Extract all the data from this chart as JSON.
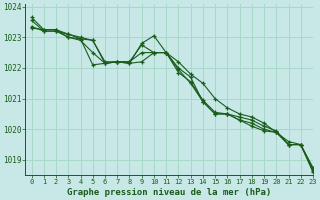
{
  "background_color": "#c8e8e8",
  "grid_color": "#a8d8c8",
  "line_color": "#1a5c1a",
  "title": "Graphe pression niveau de la mer (hPa)",
  "xlim": [
    -0.5,
    23
  ],
  "ylim": [
    1018.5,
    1024.1
  ],
  "yticks": [
    1019,
    1020,
    1021,
    1022,
    1023,
    1024
  ],
  "xticks": [
    0,
    1,
    2,
    3,
    4,
    5,
    6,
    7,
    8,
    9,
    10,
    11,
    12,
    13,
    14,
    15,
    16,
    17,
    18,
    19,
    20,
    21,
    22,
    23
  ],
  "series": [
    [
      1023.65,
      1023.25,
      1023.25,
      1023.1,
      1022.95,
      1022.9,
      1022.15,
      1022.2,
      1022.2,
      1022.75,
      1022.5,
      1022.5,
      1022.0,
      1021.7,
      1020.9,
      1020.5,
      1020.5,
      1020.3,
      1020.1,
      1019.95,
      1019.9,
      1019.6,
      1019.5,
      1018.7
    ],
    [
      1023.3,
      1023.25,
      1023.25,
      1023.0,
      1022.95,
      1022.1,
      1022.15,
      1022.2,
      1022.15,
      1022.2,
      1022.5,
      1022.5,
      1021.85,
      1021.55,
      1020.95,
      1020.55,
      1020.5,
      1020.4,
      1020.3,
      1020.1,
      1019.95,
      1019.5,
      1019.5,
      1018.65
    ],
    [
      1023.35,
      1023.2,
      1023.2,
      1023.0,
      1022.9,
      1022.5,
      1022.15,
      1022.2,
      1022.15,
      1022.8,
      1023.05,
      1022.5,
      1021.95,
      1021.5,
      1020.9,
      1020.5,
      1020.5,
      1020.3,
      1020.2,
      1020.0,
      1019.9,
      1019.5,
      1019.5,
      1018.75
    ],
    [
      1023.55,
      1023.2,
      1023.2,
      1023.1,
      1023.0,
      1022.9,
      1022.2,
      1022.2,
      1022.2,
      1022.5,
      1022.5,
      1022.5,
      1022.2,
      1021.8,
      1021.5,
      1021.0,
      1020.7,
      1020.5,
      1020.4,
      1020.2,
      1019.9,
      1019.5,
      1019.5,
      1018.6
    ]
  ]
}
